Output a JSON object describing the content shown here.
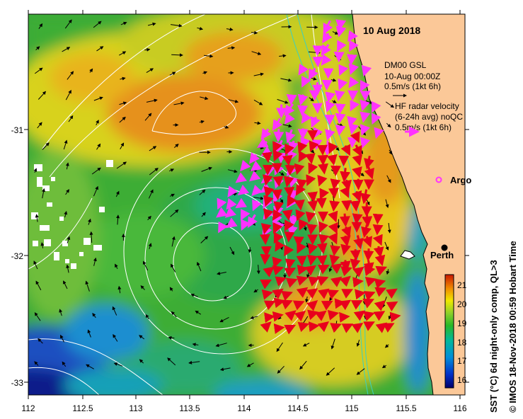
{
  "map": {
    "date_title": "10 Aug 2018",
    "x_ticks": [
      "112",
      "112.5",
      "113",
      "113.5",
      "114",
      "114.5",
      "115",
      "115.5",
      "116"
    ],
    "y_ticks": [
      "-31",
      "-32",
      "-33"
    ],
    "legend_model": {
      "line1": "DM00 GSL",
      "line2": "10-Aug 00:00Z",
      "line3": "0.5m/s (1kt 6h)",
      "arrow_color": "#000000"
    },
    "legend_radar": {
      "line1": "HF radar velocity",
      "line2": "(6-24h avg) noQC",
      "line3": "0.5m/s (1kt 6h)",
      "arrow_color": "#ff33ff"
    },
    "argo_label": "Argo",
    "city_label": "Perth",
    "credit": "© IMOS 18-Nov-2018 00:59 Hobart Time",
    "colorbar": {
      "title": "SST (°C) 6d night-only comp, QL>3",
      "ticks": [
        "16",
        "17",
        "18",
        "19",
        "20",
        "21"
      ]
    },
    "colors": {
      "land": "#fbc898",
      "radar_magenta": "#ff33ff",
      "radar_red": "#e8001c",
      "model_black": "#000000",
      "contour": "#ffffff"
    }
  }
}
